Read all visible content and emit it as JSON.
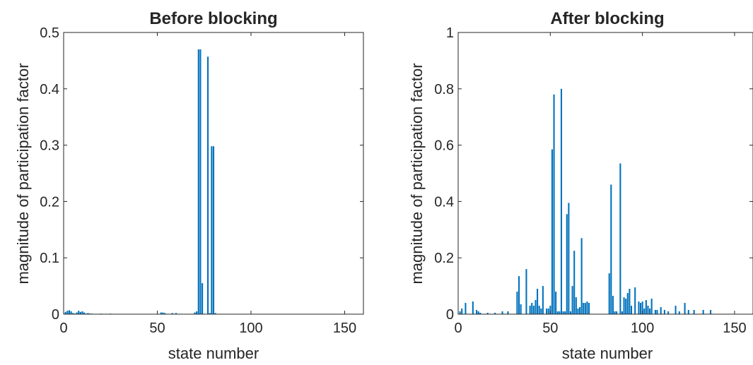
{
  "chart_data": [
    {
      "type": "bar",
      "title": "Before blocking",
      "xlabel": "state number",
      "ylabel": "magnitude of participation factor",
      "xlim": [
        0,
        160
      ],
      "ylim": [
        0,
        0.5
      ],
      "xticks": [
        0,
        50,
        100,
        150
      ],
      "yticks": [
        0,
        0.1,
        0.2,
        0.3,
        0.4,
        0.5
      ],
      "xtick_labels": [
        "0",
        "50",
        "100",
        "150"
      ],
      "ytick_labels": [
        "0",
        "0.1",
        "0.2",
        "0.3",
        "0.4",
        "0.5"
      ],
      "bar_color": "#0072BD",
      "grid": false,
      "x": [
        1,
        2,
        3,
        4,
        5,
        6,
        7,
        8,
        9,
        10,
        11,
        12,
        13,
        14,
        15,
        20,
        25,
        52,
        53,
        54,
        58,
        60,
        70,
        71,
        72,
        73,
        74,
        77,
        78,
        79,
        80,
        81
      ],
      "values": [
        0.004,
        0.006,
        0.007,
        0.005,
        0.002,
        0.001,
        0.003,
        0.006,
        0.004,
        0.005,
        0.003,
        0.001,
        0.002,
        0.001,
        0.001,
        0.001,
        0.001,
        0.003,
        0.003,
        0.002,
        0.002,
        0.002,
        0.003,
        0.005,
        0.47,
        0.47,
        0.055,
        0.457,
        0.002,
        0.298,
        0.298,
        0.002
      ]
    },
    {
      "type": "bar",
      "title": "After blocking",
      "xlabel": "state number",
      "ylabel": "magnitude of participation factor",
      "xlim": [
        0,
        160
      ],
      "ylim": [
        0,
        1
      ],
      "xticks": [
        0,
        50,
        100,
        150
      ],
      "yticks": [
        0,
        0.2,
        0.4,
        0.6,
        0.8,
        1
      ],
      "xtick_labels": [
        "0",
        "50",
        "100",
        "150"
      ],
      "ytick_labels": [
        "0",
        "0.2",
        "0.4",
        "0.6",
        "0.8",
        "1"
      ],
      "bar_color": "#0072BD",
      "grid": false,
      "x": [
        1,
        2,
        4,
        8,
        10,
        11,
        12,
        16,
        20,
        24,
        27,
        32,
        33,
        34,
        37,
        39,
        40,
        41,
        42,
        43,
        44,
        45,
        46,
        48,
        49,
        50,
        51,
        52,
        53,
        54,
        55,
        56,
        57,
        58,
        59,
        60,
        61,
        62,
        63,
        64,
        65,
        66,
        67,
        68,
        69,
        70,
        71,
        82,
        83,
        84,
        85,
        86,
        88,
        89,
        90,
        91,
        92,
        93,
        94,
        96,
        98,
        99,
        100,
        101,
        102,
        103,
        104,
        105,
        107,
        108,
        110,
        112,
        114,
        118,
        120,
        123,
        125,
        128,
        133,
        137
      ],
      "values": [
        0.01,
        0.02,
        0.04,
        0.045,
        0.015,
        0.01,
        0.005,
        0.005,
        0.005,
        0.01,
        0.01,
        0.08,
        0.135,
        0.035,
        0.16,
        0.03,
        0.04,
        0.03,
        0.05,
        0.09,
        0.03,
        0.02,
        0.1,
        0.02,
        0.02,
        0.03,
        0.585,
        0.78,
        0.08,
        0.01,
        0.01,
        0.8,
        0.01,
        0.01,
        0.355,
        0.395,
        0.01,
        0.1,
        0.225,
        0.06,
        0.02,
        0.025,
        0.27,
        0.04,
        0.04,
        0.045,
        0.04,
        0.145,
        0.46,
        0.065,
        0.01,
        0.01,
        0.535,
        0.01,
        0.06,
        0.055,
        0.075,
        0.09,
        0.03,
        0.095,
        0.045,
        0.04,
        0.045,
        0.02,
        0.05,
        0.03,
        0.02,
        0.055,
        0.015,
        0.015,
        0.025,
        0.015,
        0.01,
        0.03,
        0.01,
        0.04,
        0.015,
        0.015,
        0.015,
        0.015
      ]
    }
  ]
}
